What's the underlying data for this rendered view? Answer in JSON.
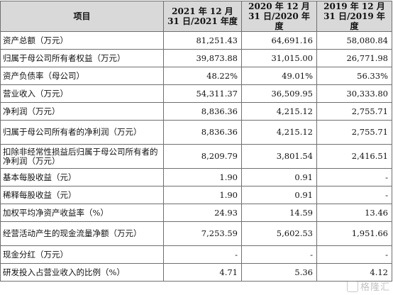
{
  "table": {
    "headers": [
      "项目",
      "2021 年 12 月 31 日/2021 年度",
      "2020 年 12 月 31 日/2020 年度",
      "2019 年 12 月 31 日/2019 年度"
    ],
    "rows": [
      {
        "label": "资产总额（万元）",
        "values": [
          "81,251.43",
          "64,691.16",
          "58,080.84"
        ]
      },
      {
        "label": "归属于母公司所有者权益（万元）",
        "values": [
          "39,873.88",
          "31,015.00",
          "26,771.98"
        ]
      },
      {
        "label": "资产负债率（母公司）",
        "values": [
          "48.22%",
          "49.01%",
          "56.33%"
        ]
      },
      {
        "label": "营业收入（万元）",
        "values": [
          "54,311.37",
          "36,509.95",
          "30,333.80"
        ]
      },
      {
        "label": "净利润（万元）",
        "values": [
          "8,836.36",
          "4,215.12",
          "2,755.71"
        ]
      },
      {
        "label": "归属于母公司所有者的净利润（万元）",
        "values": [
          "8,836.36",
          "4,215.12",
          "2,755.71"
        ]
      },
      {
        "label": "扣除非经常性损益后归属于母公司所有者的净利润（万元）",
        "values": [
          "8,209.79",
          "3,801.54",
          "2,416.51"
        ]
      },
      {
        "label": "基本每股收益（元）",
        "values": [
          "1.90",
          "0.91",
          "-"
        ]
      },
      {
        "label": "稀释每股收益（元）",
        "values": [
          "1.90",
          "0.91",
          "-"
        ]
      },
      {
        "label": "加权平均净资产收益率（%）",
        "values": [
          "24.93",
          "14.59",
          "13.46"
        ]
      },
      {
        "label": "经营活动产生的现金流量净额（万元）",
        "values": [
          "7,253.59",
          "5,602.53",
          "1,951.66"
        ]
      },
      {
        "label": "现金分红（万元）",
        "values": [
          "-",
          "-",
          "-"
        ]
      },
      {
        "label": "研发投入占营业收入的比例（%）",
        "values": [
          "4.71",
          "5.36",
          "4.12"
        ]
      }
    ]
  },
  "watermark": {
    "text": "格隆汇"
  }
}
